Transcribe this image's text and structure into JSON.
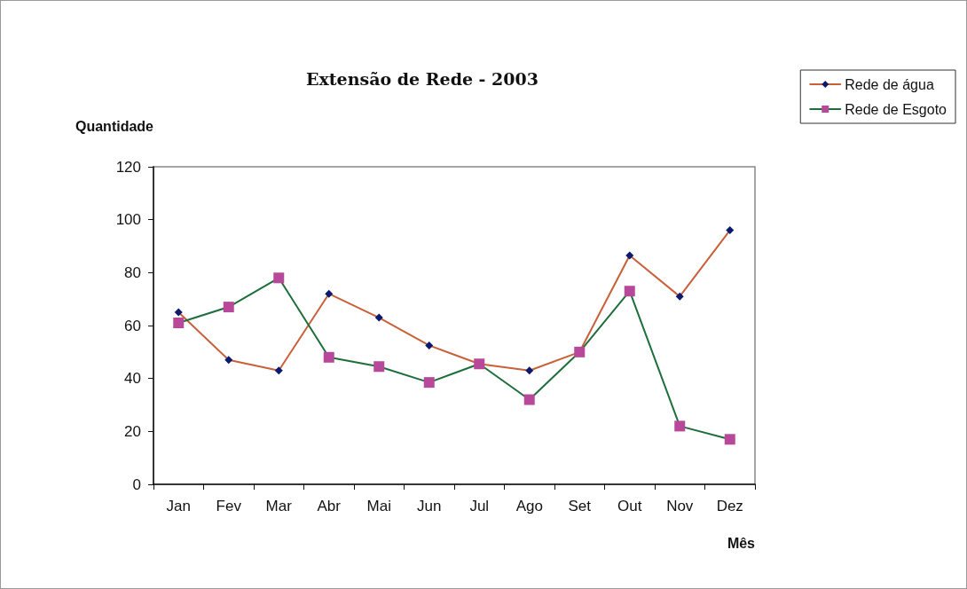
{
  "chart_data": {
    "type": "line",
    "title": "Extensão de Rede - 2003",
    "xlabel": "Mês",
    "ylabel": "Quantidade",
    "categories": [
      "Jan",
      "Fev",
      "Mar",
      "Abr",
      "Mai",
      "Jun",
      "Jul",
      "Ago",
      "Set",
      "Out",
      "Nov",
      "Dez"
    ],
    "series": [
      {
        "name": "Rede de água",
        "color": "#c8603a",
        "marker": "diamond",
        "values": [
          65,
          47,
          43,
          72,
          63,
          52.5,
          45.5,
          43,
          50,
          86.5,
          71,
          96
        ]
      },
      {
        "name": "Rede de Esgoto",
        "color": "#1e6e3c",
        "marker": "square",
        "values": [
          61,
          67,
          78,
          48,
          44.5,
          38.5,
          45.5,
          32,
          50,
          73,
          22,
          17
        ]
      }
    ],
    "ylim": [
      0,
      120
    ],
    "yticks": [
      0,
      20,
      40,
      60,
      80,
      100,
      120
    ],
    "grid": false,
    "legend": "top right",
    "line_style": "solid"
  }
}
